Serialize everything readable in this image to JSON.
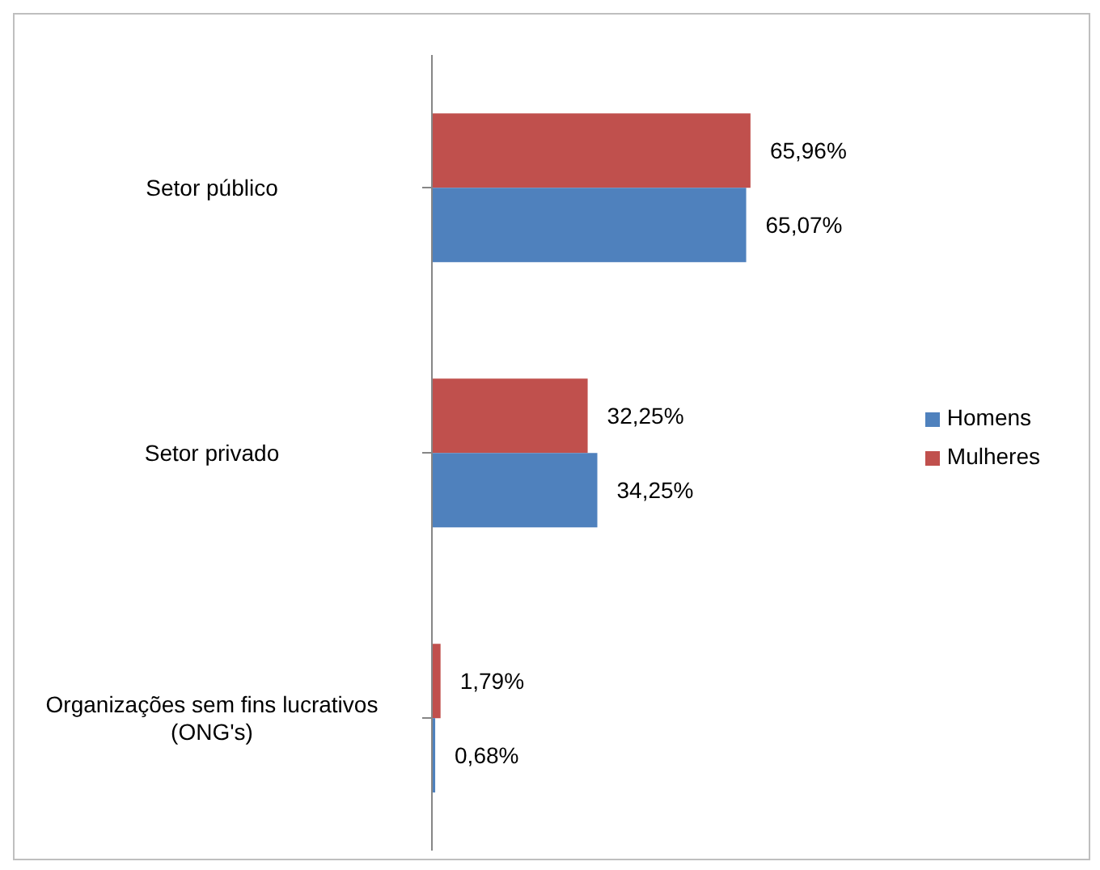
{
  "chart_data": {
    "type": "bar",
    "orientation": "horizontal",
    "categories": [
      "Setor público",
      "Setor privado",
      "Organizações sem fins lucrativos (ONG's)"
    ],
    "series": [
      {
        "name": "Mulheres",
        "color": "#c0504d",
        "values": [
          65.96,
          32.25,
          1.79
        ],
        "value_labels": [
          "65,96%",
          "32,25%",
          "1,79%"
        ]
      },
      {
        "name": "Homens",
        "color": "#4f81bd",
        "values": [
          65.07,
          34.25,
          0.68
        ],
        "value_labels": [
          "65,07%",
          "34,25%",
          "0,68%"
        ]
      }
    ],
    "legend": "right",
    "grid": false
  }
}
